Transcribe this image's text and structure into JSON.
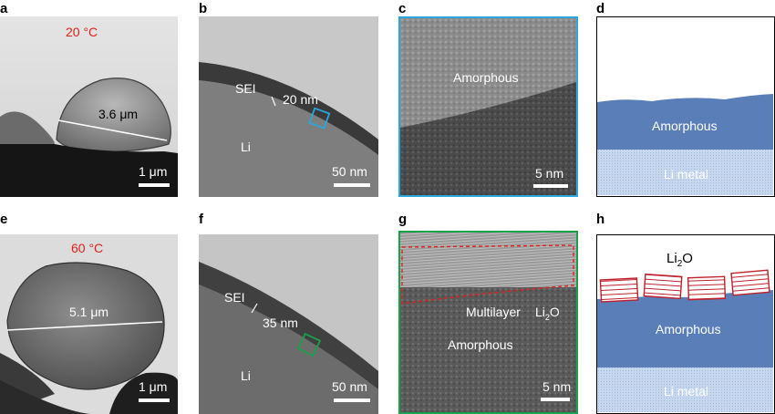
{
  "figure": {
    "panels": {
      "a": {
        "label": "a",
        "temperature": "20 °C",
        "size": "3.6 μm",
        "scale": "1 μm",
        "temp_color": "#e0201a"
      },
      "b": {
        "label": "b",
        "sei": "SEI",
        "thickness": "20 nm",
        "li": "Li",
        "scale": "50 nm",
        "box_color": "#2aa7dc"
      },
      "c": {
        "label": "c",
        "phase": "Amorphous",
        "scale": "5 nm",
        "frame_color": "#2aa7dc"
      },
      "d": {
        "label": "d",
        "layer": "Amorphous",
        "base": "Li metal",
        "layer_color": "#5a7fb8",
        "base_color": "#c7d8ee"
      },
      "e": {
        "label": "e",
        "temperature": "60 °C",
        "size": "5.1 μm",
        "scale": "1 μm",
        "temp_color": "#e0201a"
      },
      "f": {
        "label": "f",
        "sei": "SEI",
        "thickness": "35 nm",
        "li": "Li",
        "scale": "50 nm",
        "box_color": "#1aa04a"
      },
      "g": {
        "label": "g",
        "multilayer": "Multilayer",
        "li2o_main": "Li",
        "li2o_sub": "2",
        "li2o_tail": "O",
        "phase": "Amorphous",
        "scale": "5 nm",
        "frame_color": "#1aa04a",
        "dashed_color": "#e0201a"
      },
      "h": {
        "label": "h",
        "li2o_main": "Li",
        "li2o_sub": "2",
        "li2o_tail": "O",
        "layer": "Amorphous",
        "base": "Li metal",
        "crystal_color": "#c0202a"
      }
    }
  }
}
